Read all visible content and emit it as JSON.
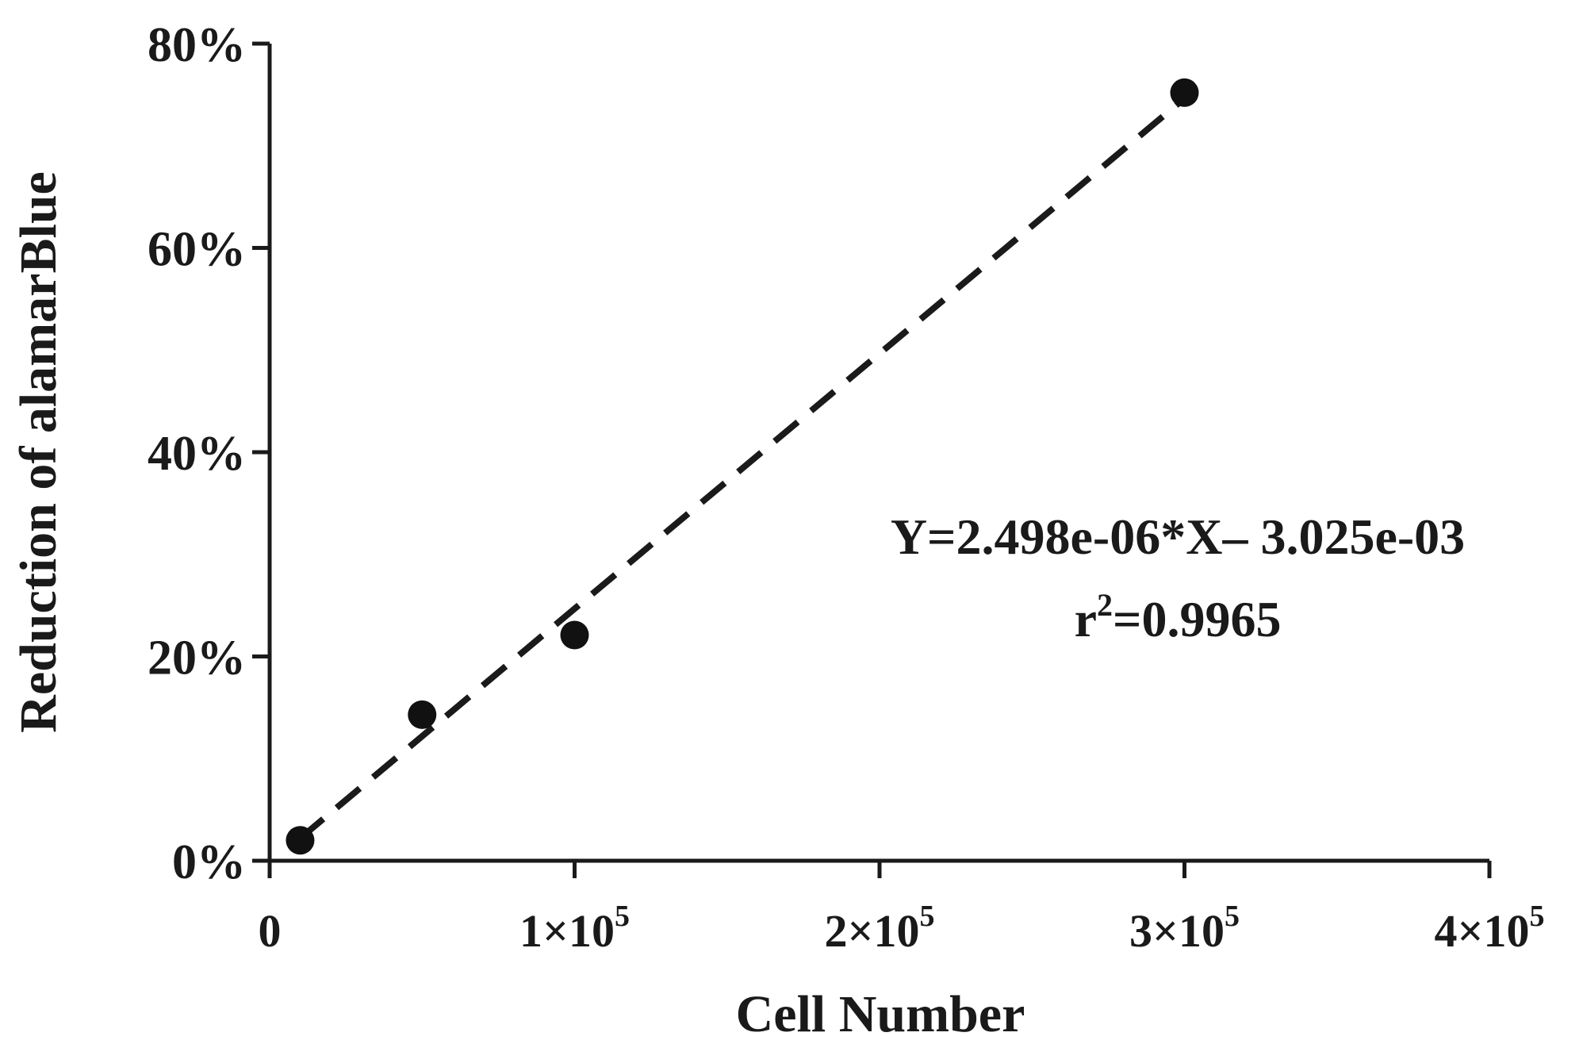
{
  "chart_data": {
    "type": "scatter",
    "xlabel": "Cell Number",
    "ylabel": "Reduction of alamarBlue",
    "xlim": [
      0,
      400000
    ],
    "ylim": [
      0,
      0.8
    ],
    "x_ticks": [
      {
        "value": 0,
        "base": "0",
        "exp": ""
      },
      {
        "value": 100000,
        "base": "1×10",
        "exp": "5"
      },
      {
        "value": 200000,
        "base": "2×10",
        "exp": "5"
      },
      {
        "value": 300000,
        "base": "3×10",
        "exp": "5"
      },
      {
        "value": 400000,
        "base": "4×10",
        "exp": "5"
      }
    ],
    "y_ticks": [
      {
        "value": 0,
        "label": "0%"
      },
      {
        "value": 0.2,
        "label": "20%"
      },
      {
        "value": 0.4,
        "label": "40%"
      },
      {
        "value": 0.6,
        "label": "60%"
      },
      {
        "value": 0.8,
        "label": "80%"
      }
    ],
    "points": [
      {
        "x": 10000,
        "y": 0.02
      },
      {
        "x": 50000,
        "y": 0.143
      },
      {
        "x": 100000,
        "y": 0.221
      },
      {
        "x": 300000,
        "y": 0.752
      }
    ],
    "fit": {
      "slope": 2.498e-06,
      "intercept": -0.003025,
      "x_range": [
        10000,
        300000
      ],
      "equation": "Y=2.498e-06*X– 3.025e-03",
      "r2_prefix": "r",
      "r2_exp": "2",
      "r2_value": "=0.9965"
    },
    "grid": false,
    "legend": "none"
  }
}
